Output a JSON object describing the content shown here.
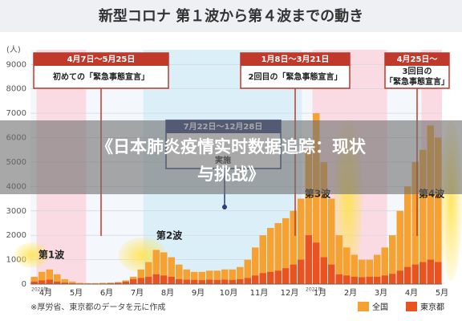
{
  "chart_data": {
    "type": "bar",
    "title": "新型コロナ 第１波から第４波までの動き",
    "y_unit": "(人)",
    "source": "※厚労省、東京都のデータを元に作成",
    "categories": [
      "4月",
      null,
      null,
      null,
      "5月",
      null,
      null,
      null,
      "6月",
      null,
      null,
      null,
      "7月",
      null,
      null,
      null,
      "8月",
      null,
      null,
      null,
      "9月",
      null,
      null,
      null,
      "10月",
      null,
      null,
      null,
      "11月",
      null,
      null,
      null,
      "12月",
      null,
      null,
      null,
      "1月",
      null,
      null,
      null,
      "2月",
      null,
      null,
      null,
      "3月",
      null,
      null,
      null,
      "4月",
      null,
      null,
      null,
      "5月",
      null
    ],
    "year_labels": [
      "2020年",
      "2021年"
    ],
    "series": [
      {
        "name": "全国",
        "color": "#f5a233",
        "values": [
          300,
          500,
          600,
          400,
          200,
          100,
          50,
          40,
          40,
          50,
          60,
          80,
          150,
          300,
          600,
          900,
          1400,
          1300,
          1100,
          800,
          600,
          500,
          500,
          550,
          550,
          600,
          600,
          700,
          1000,
          1500,
          2000,
          2300,
          2500,
          2700,
          3000,
          3500,
          5500,
          7000,
          5000,
          3500,
          2000,
          1500,
          1200,
          1000,
          1000,
          1200,
          1500,
          2000,
          3000,
          4000,
          5000,
          5500,
          6500,
          6000
        ]
      },
      {
        "name": "東京都",
        "color": "#e8531f",
        "values": [
          100,
          150,
          180,
          100,
          60,
          30,
          15,
          10,
          15,
          20,
          30,
          50,
          100,
          200,
          250,
          300,
          400,
          350,
          300,
          200,
          180,
          170,
          160,
          180,
          170,
          180,
          170,
          200,
          250,
          350,
          450,
          500,
          550,
          650,
          800,
          1000,
          2000,
          1700,
          1100,
          800,
          400,
          350,
          300,
          280,
          300,
          300,
          350,
          420,
          550,
          700,
          800,
          900,
          1000,
          900
        ]
      }
    ],
    "ylim": [
      0,
      9600
    ],
    "yticks": [
      0,
      1000,
      2000,
      3000,
      4000,
      5000,
      6000,
      7000,
      8000,
      9000
    ],
    "grid": true,
    "declarations": [
      {
        "dates": "4月7日〜5月25日",
        "label": "初めての「緊急事態宣言」"
      },
      {
        "dates": "1月8日〜3月21日",
        "label": "2回目の「緊急事態宣言」"
      },
      {
        "dates": "4月25日〜",
        "label": "3回目の",
        "label2": "「緊急事態宣言」"
      }
    ],
    "campaign": {
      "dates": "7月22日〜12月28日",
      "label": "実施"
    },
    "waves": [
      "第1波",
      "第2波",
      "第3波",
      "第4波"
    ],
    "overlay_title_lines": [
      "《日本肺炎疫情实时数据追踪：现状",
      "与挑战》"
    ]
  }
}
